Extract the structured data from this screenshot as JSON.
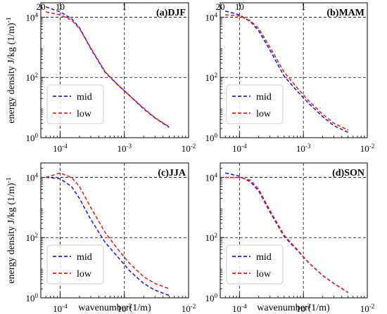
{
  "figure": {
    "ylabel": "energy density J/kg (1/m)$^{-1}$",
    "xlabel": "wavenumber(1/m)"
  },
  "colors": {
    "mid": "#1f1fe6",
    "low": "#e61f1f"
  },
  "chart_data": [
    {
      "type": "line",
      "title": "(a)DJF",
      "x_scale": "log",
      "y_scale": "log",
      "xlim": [
        5e-05,
        0.01
      ],
      "ylim": [
        1,
        30000
      ],
      "x_ticks": [
        "10$^{-4}$",
        "10$^{-3}$",
        "10$^{-2}$"
      ],
      "y_ticks": [
        "10$^{0}$",
        "10$^{2}$",
        "10$^{4}$"
      ],
      "top_ticks": [
        "20",
        "10",
        "1"
      ],
      "grid": "dashed, at major ticks",
      "legend": "lower-left",
      "x": [
        6e-05,
        0.0001,
        0.00015,
        0.0002,
        0.0003,
        0.0005,
        0.0008,
        0.0012,
        0.002,
        0.003,
        0.005
      ],
      "series": [
        {
          "name": "mid",
          "values": [
            22000,
            15000,
            9000,
            4500,
            900,
            150,
            55,
            25,
            9,
            4.5,
            2.2
          ]
        },
        {
          "name": "low",
          "values": [
            15000,
            12000,
            8000,
            4200,
            950,
            155,
            56,
            25,
            9.5,
            4.6,
            2.3
          ]
        }
      ]
    },
    {
      "type": "line",
      "title": "(b)MAM",
      "x_scale": "log",
      "y_scale": "log",
      "xlim": [
        5e-05,
        0.01
      ],
      "ylim": [
        1,
        30000
      ],
      "x_ticks": [
        "10$^{-4}$",
        "10$^{-3}$",
        "10$^{-2}$"
      ],
      "y_ticks": [
        "10$^{0}$",
        "10$^{2}$",
        "10$^{4}$"
      ],
      "top_ticks": [
        "20",
        "10",
        "1"
      ],
      "grid": "dashed, at major ticks",
      "legend": "lower-left",
      "x": [
        6e-05,
        0.0001,
        0.00015,
        0.0002,
        0.0003,
        0.0005,
        0.0008,
        0.0012,
        0.002,
        0.003,
        0.005
      ],
      "series": [
        {
          "name": "mid",
          "values": [
            16000,
            12000,
            7000,
            3500,
            800,
            110,
            35,
            14,
            5,
            2.5,
            1.5
          ]
        },
        {
          "name": "low",
          "values": [
            12000,
            11000,
            7500,
            4200,
            1000,
            150,
            45,
            17,
            6,
            3,
            1.8
          ]
        }
      ]
    },
    {
      "type": "line",
      "title": "(c)JJA",
      "x_scale": "log",
      "y_scale": "log",
      "xlim": [
        5e-05,
        0.01
      ],
      "ylim": [
        1,
        30000
      ],
      "x_ticks": [
        "10$^{-4}$",
        "10$^{-3}$",
        "10$^{-2}$"
      ],
      "y_ticks": [
        "10$^{0}$",
        "10$^{2}$",
        "10$^{4}$"
      ],
      "top_ticks": [],
      "grid": "dashed, at major ticks",
      "legend": "lower-left",
      "x": [
        6e-05,
        0.0001,
        0.00015,
        0.0002,
        0.0003,
        0.0005,
        0.0008,
        0.0012,
        0.002,
        0.003,
        0.005
      ],
      "series": [
        {
          "name": "mid",
          "values": [
            10000,
            9000,
            5000,
            2000,
            400,
            70,
            22,
            8,
            3,
            1.8,
            1.2
          ]
        },
        {
          "name": "low",
          "values": [
            10000,
            14000,
            10000,
            5000,
            1000,
            150,
            40,
            14,
            5,
            3,
            2
          ]
        }
      ]
    },
    {
      "type": "line",
      "title": "(d)SON",
      "x_scale": "log",
      "y_scale": "log",
      "xlim": [
        5e-05,
        0.01
      ],
      "ylim": [
        1,
        30000
      ],
      "x_ticks": [
        "10$^{-4}$",
        "10$^{-3}$",
        "10$^{-2}$"
      ],
      "y_ticks": [
        "10$^{0}$",
        "10$^{2}$",
        "10$^{4}$"
      ],
      "top_ticks": [],
      "grid": "dashed, at major ticks",
      "legend": "lower-left",
      "x": [
        6e-05,
        0.0001,
        0.00015,
        0.0002,
        0.0003,
        0.0005,
        0.0008,
        0.0012,
        0.002,
        0.003,
        0.005
      ],
      "series": [
        {
          "name": "mid",
          "values": [
            14000,
            11000,
            7000,
            3500,
            700,
            110,
            38,
            15,
            5.5,
            3,
            1.5
          ]
        },
        {
          "name": "low",
          "values": [
            10000,
            10000,
            8000,
            4000,
            800,
            120,
            40,
            15,
            5.5,
            3,
            1.5
          ]
        }
      ]
    }
  ]
}
